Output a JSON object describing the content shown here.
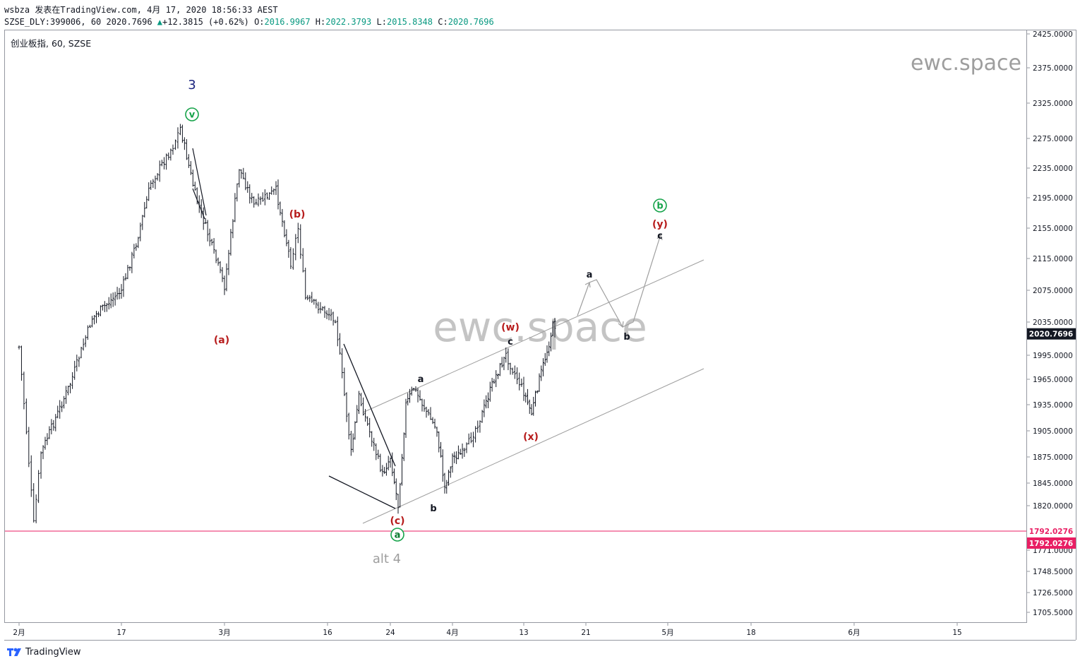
{
  "header": {
    "publish_line": "wsbza 发表在TradingView.com, 4月 17, 2020 18:56:33 AEST",
    "symbol": "SZSE_DLY:399006, 60",
    "last": "2020.7696",
    "change_arrow": "▲",
    "change": "+12.3815 (+0.62%)",
    "o_label": "O:",
    "o": "2016.9967",
    "h_label": "H:",
    "h": "2022.3793",
    "l_label": "L:",
    "l": "2015.8348",
    "c_label": "C:",
    "c": "2020.7696"
  },
  "pane_title": "创业板指, 60, SZSE",
  "watermark_small": "ewc.space",
  "watermark_big": "ewc.space",
  "footer_brand": "TradingView",
  "colors": {
    "candle": "#131722",
    "red_line": "#e91e63",
    "price_badge": "#131722",
    "wave_red": "#b71c1c",
    "wave_green": "#16a34a",
    "wave_blue": "#1a237e",
    "channel": "#9e9e9e"
  },
  "chart_data": {
    "type": "ohlc",
    "title": "创业板指, 60, SZSE",
    "y_ticks": [
      "2425.0000",
      "2375.0000",
      "2325.0000",
      "2275.0000",
      "2235.0000",
      "2195.0000",
      "2155.0000",
      "2115.0000",
      "2075.0000",
      "2035.0000",
      "1995.0000",
      "1965.0000",
      "1935.0000",
      "1905.0000",
      "1875.0000",
      "1845.0000",
      "1820.0000",
      "1771.0000",
      "1748.5000",
      "1726.5000",
      "1705.5000"
    ],
    "x_ticks": [
      "2月",
      "17",
      "3月",
      "16",
      "24",
      "4月",
      "13",
      "21",
      "5月",
      "18",
      "6月",
      "15"
    ],
    "last_price": "2020.7696",
    "horizontal_line": "1792.0276",
    "horizontal_line_badge": "1792.0276",
    "approx_path": [
      {
        "date": "2020-02-03",
        "price": 2005
      },
      {
        "date": "2020-02-04",
        "price": 1905
      },
      {
        "date": "2020-02-05",
        "price": 1800
      },
      {
        "date": "2020-02-06",
        "price": 1880
      },
      {
        "date": "2020-02-10",
        "price": 1960
      },
      {
        "date": "2020-02-13",
        "price": 2040
      },
      {
        "date": "2020-02-17",
        "price": 2075
      },
      {
        "date": "2020-02-19",
        "price": 2135
      },
      {
        "date": "2020-02-21",
        "price": 2215
      },
      {
        "date": "2020-02-24",
        "price": 2265
      },
      {
        "date": "2020-02-25",
        "price": 2290
      },
      {
        "date": "2020-02-27",
        "price": 2200
      },
      {
        "date": "2020-03-02",
        "price": 2080
      },
      {
        "date": "2020-03-04",
        "price": 2235
      },
      {
        "date": "2020-03-06",
        "price": 2185
      },
      {
        "date": "2020-03-09",
        "price": 2205
      },
      {
        "date": "2020-03-11",
        "price": 2110
      },
      {
        "date": "2020-03-12",
        "price": 2155
      },
      {
        "date": "2020-03-13",
        "price": 2065
      },
      {
        "date": "2020-03-17",
        "price": 2040
      },
      {
        "date": "2020-03-19",
        "price": 1880
      },
      {
        "date": "2020-03-20",
        "price": 1945
      },
      {
        "date": "2020-03-23",
        "price": 1855
      },
      {
        "date": "2020-03-24",
        "price": 1875
      },
      {
        "date": "2020-03-25",
        "price": 1820
      },
      {
        "date": "2020-03-26",
        "price": 1935
      },
      {
        "date": "2020-03-27",
        "price": 1955
      },
      {
        "date": "2020-03-30",
        "price": 1905
      },
      {
        "date": "2020-03-31",
        "price": 1840
      },
      {
        "date": "2020-04-01",
        "price": 1875
      },
      {
        "date": "2020-04-03",
        "price": 1880
      },
      {
        "date": "2020-04-06",
        "price": 1925
      },
      {
        "date": "2020-04-08",
        "price": 1965
      },
      {
        "date": "2020-04-10",
        "price": 1995
      },
      {
        "date": "2020-04-13",
        "price": 1950
      },
      {
        "date": "2020-04-14",
        "price": 1925
      },
      {
        "date": "2020-04-15",
        "price": 1965
      },
      {
        "date": "2020-04-16",
        "price": 2000
      },
      {
        "date": "2020-04-17",
        "price": 2040
      },
      {
        "date": "2020-04-17",
        "price": 2020.7696
      }
    ],
    "annotations": [
      {
        "text": "3",
        "style": "blue"
      },
      {
        "text": "v",
        "style": "green-circle"
      },
      {
        "text": "(a)",
        "style": "red"
      },
      {
        "text": "(b)",
        "style": "red"
      },
      {
        "text": "(c)",
        "style": "red"
      },
      {
        "text": "a",
        "style": "green-circle-filled"
      },
      {
        "text": "alt 4",
        "style": "gray"
      },
      {
        "text": "a",
        "style": "black"
      },
      {
        "text": "b",
        "style": "black"
      },
      {
        "text": "(w)",
        "style": "red"
      },
      {
        "text": "c",
        "style": "black"
      },
      {
        "text": "(x)",
        "style": "red"
      },
      {
        "text": "a",
        "style": "black"
      },
      {
        "text": "b",
        "style": "black"
      },
      {
        "text": "b",
        "style": "green-circle"
      },
      {
        "text": "(y)",
        "style": "red"
      },
      {
        "text": "c",
        "style": "black"
      }
    ]
  }
}
